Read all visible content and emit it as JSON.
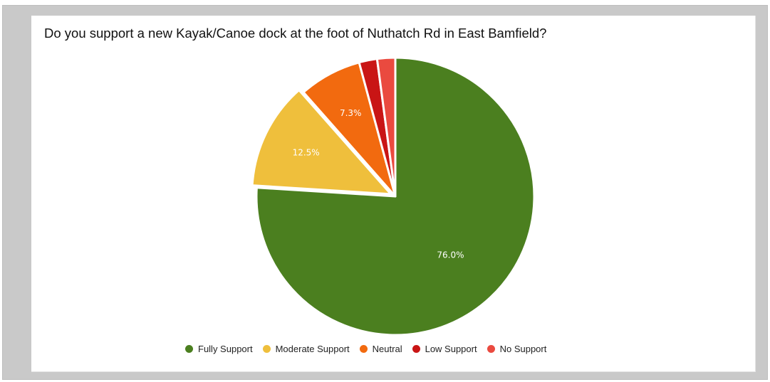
{
  "colors": {
    "fully_support": "#4b7f1f",
    "moderate_support": "#efbf3c",
    "neutral": "#f26a0f",
    "low_support": "#c91515",
    "no_support": "#ea4a3f"
  },
  "chart_data": {
    "type": "pie",
    "title": "Do you support a new Kayak/Canoe dock at the foot of Nuthatch Rd in East Bamfield?",
    "categories": [
      "Fully Support",
      "Moderate Support",
      "Neutral",
      "Low Support",
      "No Support"
    ],
    "values": [
      76.0,
      12.5,
      7.3,
      2.1,
      2.1
    ],
    "data_labels": [
      "76.0%",
      "12.5%",
      "7.3%",
      "",
      ""
    ],
    "exploded_category": "Moderate Support",
    "legend_position": "bottom",
    "start_angle": "top",
    "direction": "clockwise"
  }
}
